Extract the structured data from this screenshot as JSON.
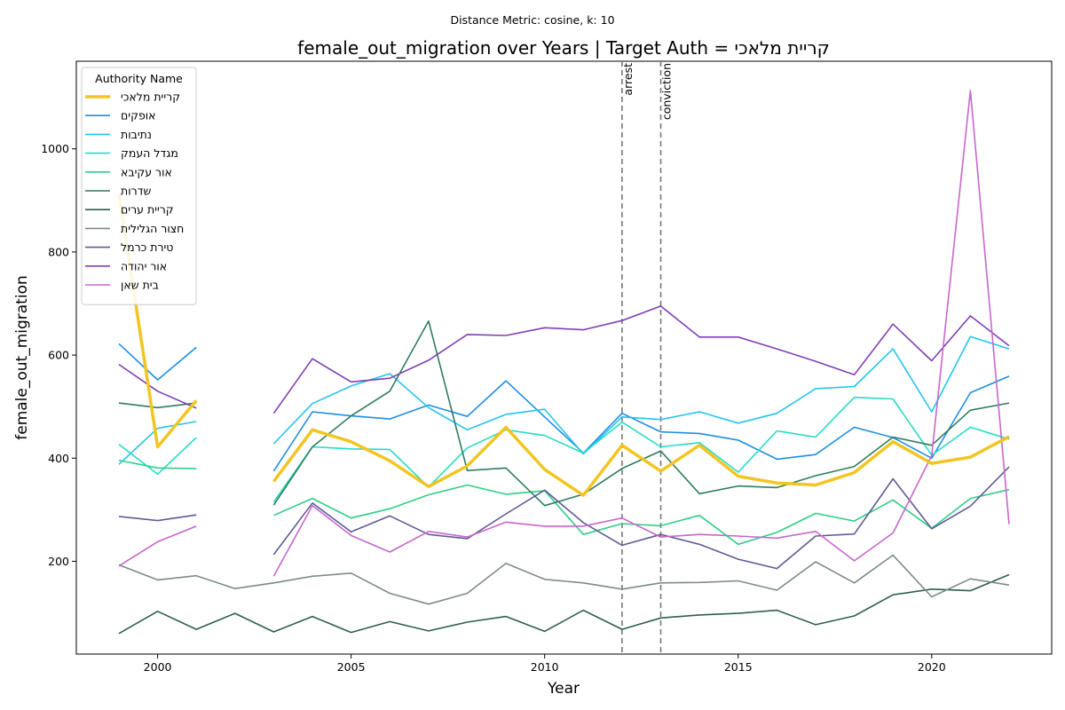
{
  "suptitle": "Distance Metric: cosine, k: 10",
  "chart_data": {
    "type": "line",
    "title": "female_out_migration over Years | Target Auth = קריית מלאכי",
    "xlabel": "Year",
    "ylabel": "female_out_migration",
    "xlim": [
      1997.9,
      2023.1
    ],
    "ylim": [
      20,
      1170
    ],
    "xticks": [
      2000,
      2005,
      2010,
      2015,
      2020
    ],
    "yticks": [
      200,
      400,
      600,
      800,
      1000
    ],
    "grid": false,
    "legend_title": "Authority Name",
    "legend_position": "top-left",
    "vlines": [
      {
        "x": 2012,
        "label": "arrest"
      },
      {
        "x": 2013,
        "label": "conviction"
      }
    ],
    "x": [
      1999,
      2000,
      2001,
      2002,
      2003,
      2004,
      2005,
      2006,
      2007,
      2008,
      2009,
      2010,
      2011,
      2012,
      2013,
      2014,
      2015,
      2016,
      2017,
      2018,
      2019,
      2020,
      2021,
      2022
    ],
    "series": [
      {
        "name": "קריית מלאכי",
        "color": "#f2c521",
        "width": 3.5,
        "values": [
          912,
          422,
          512,
          null,
          355,
          455,
          432,
          395,
          345,
          385,
          460,
          378,
          328,
          425,
          375,
          425,
          365,
          352,
          348,
          372,
          432,
          390,
          402,
          442
        ]
      },
      {
        "name": "אופקים",
        "color": "#1f8ee0",
        "width": 1.6,
        "values": [
          622,
          552,
          615,
          null,
          375,
          490,
          482,
          476,
          503,
          481,
          550,
          480,
          410,
          487,
          451,
          448,
          435,
          398,
          407,
          460,
          440,
          400,
          527,
          559
        ]
      },
      {
        "name": "נתיבות",
        "color": "#25c4ee",
        "width": 1.6,
        "values": [
          388,
          458,
          471,
          null,
          428,
          506,
          540,
          564,
          498,
          455,
          485,
          495,
          408,
          480,
          475,
          490,
          468,
          487,
          535,
          539,
          612,
          490,
          636,
          612
        ]
      },
      {
        "name": "מגדל העמק",
        "color": "#24dcc4",
        "width": 1.6,
        "values": [
          427,
          369,
          440,
          null,
          315,
          422,
          418,
          417,
          344,
          420,
          455,
          444,
          410,
          470,
          422,
          430,
          373,
          453,
          441,
          518,
          515,
          406,
          460,
          437
        ]
      },
      {
        "name": "אור עקיבא",
        "color": "#2ecf86",
        "width": 1.6,
        "values": [
          396,
          381,
          380,
          null,
          289,
          322,
          284,
          302,
          329,
          348,
          330,
          337,
          252,
          273,
          269,
          289,
          233,
          256,
          293,
          278,
          319,
          264,
          322,
          339
        ]
      },
      {
        "name": "שדרות",
        "color": "#2e7d5d",
        "width": 1.6,
        "values": [
          507,
          498,
          507,
          null,
          309,
          422,
          482,
          530,
          666,
          376,
          381,
          308,
          330,
          380,
          414,
          331,
          346,
          343,
          366,
          384,
          441,
          425,
          493,
          507
        ]
      },
      {
        "name": "קריית ערים",
        "color": "#2f5f4d",
        "width": 1.6,
        "values": [
          60,
          103,
          68,
          99,
          63,
          93,
          62,
          83,
          65,
          82,
          93,
          64,
          105,
          68,
          90,
          96,
          99,
          105,
          77,
          94,
          135,
          146,
          143,
          174
        ]
      },
      {
        "name": "חצור הגלילית",
        "color": "#7c8c86",
        "width": 1.6,
        "values": [
          193,
          164,
          172,
          147,
          158,
          171,
          177,
          138,
          117,
          138,
          196,
          165,
          158,
          146,
          158,
          159,
          162,
          144,
          199,
          158,
          212,
          131,
          166,
          154
        ]
      },
      {
        "name": "טירת כרמל",
        "color": "#5f5b98",
        "width": 1.6,
        "values": [
          287,
          279,
          290,
          null,
          213,
          313,
          257,
          288,
          252,
          244,
          292,
          338,
          275,
          231,
          252,
          233,
          204,
          186,
          249,
          253,
          360,
          263,
          307,
          383
        ]
      },
      {
        "name": "אור יהודה",
        "color": "#7f3fb3",
        "width": 1.6,
        "values": [
          582,
          530,
          497,
          null,
          487,
          593,
          548,
          555,
          590,
          640,
          638,
          653,
          649,
          667,
          695,
          635,
          635,
          612,
          588,
          562,
          660,
          589,
          676,
          618
        ]
      },
      {
        "name": "בית שאן",
        "color": "#c866cc",
        "width": 1.6,
        "values": [
          191,
          238,
          268,
          null,
          171,
          308,
          250,
          218,
          258,
          247,
          276,
          268,
          268,
          284,
          247,
          252,
          249,
          245,
          258,
          201,
          255,
          405,
          1113,
          272
        ]
      }
    ]
  }
}
